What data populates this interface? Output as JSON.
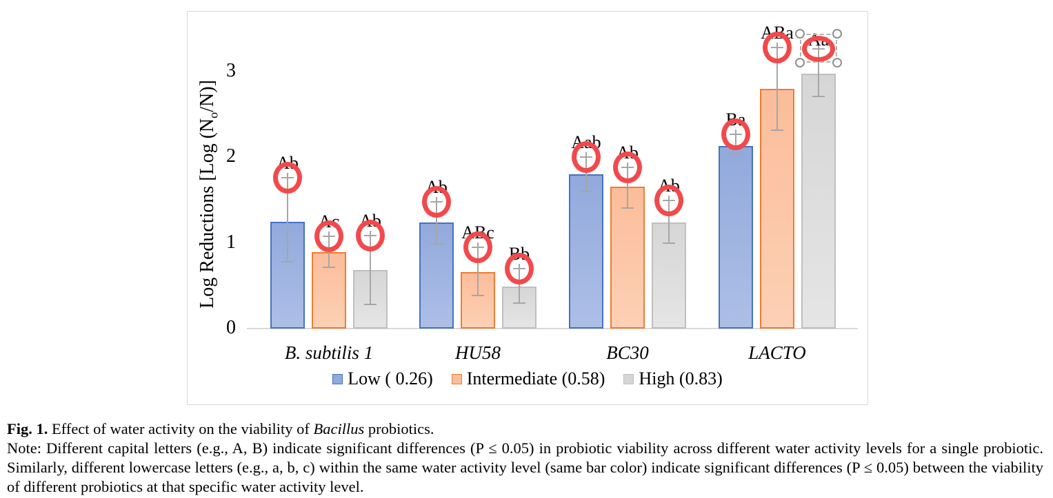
{
  "chart_data": {
    "type": "bar",
    "title": "",
    "ylabel_plain": "Log Reductions [Log (No/N)]",
    "ylabel": {
      "pre": "Log Reductions [Log (N",
      "sub": "o",
      "post": "/N)]"
    },
    "categories": [
      "B. subtilis 1",
      "HU58",
      "BC30",
      "LACTO"
    ],
    "yticks": [
      0,
      1,
      2,
      3
    ],
    "ylim": [
      0,
      3.45
    ],
    "grid": false,
    "legend_position": "bottom-center",
    "error_bars": true,
    "series": [
      {
        "name": "Low ( 0.26)",
        "fill": "#92a9dc",
        "fill_light": "#adbfe6",
        "border": "#4472c4",
        "values": [
          1.25,
          1.24,
          1.8,
          2.13
        ],
        "error_up": [
          0.51,
          0.24,
          0.2,
          0.14
        ],
        "error_down": [
          0.47,
          0.25,
          0.2,
          0.09
        ],
        "sig_labels": [
          "Ab",
          "Ab",
          "Aab",
          "Ba"
        ]
      },
      {
        "name": "Intermediate (0.58)",
        "fill": "#fbbd9a",
        "fill_light": "#fdd0b5",
        "border": "#ed7d31",
        "values": [
          0.89,
          0.66,
          1.66,
          2.8
        ],
        "error_up": [
          0.19,
          0.29,
          0.22,
          0.48
        ],
        "error_down": [
          0.17,
          0.27,
          0.25,
          0.48
        ],
        "sig_labels": [
          "Ac",
          "ABc",
          "Ab",
          "ABa"
        ]
      },
      {
        "name": "High (0.83)",
        "fill": "#d6d6d6",
        "fill_light": "#e5e5e5",
        "border": "#bfbfbf",
        "values": [
          0.68,
          0.49,
          1.24,
          2.98
        ],
        "error_up": [
          0.41,
          0.21,
          0.26,
          0.29
        ],
        "error_down": [
          0.4,
          0.19,
          0.24,
          0.27
        ],
        "sig_labels": [
          "Ab",
          "Bb",
          "Ab",
          "Aa"
        ]
      }
    ],
    "circle_annotations": {
      "description": "red ellipse circling the top error-bar cap of every bar",
      "color": "#f2494c",
      "selected_series": 2,
      "selected_category": 3
    }
  },
  "colors": {
    "axis_line": "#d9d9d9",
    "error_bar": "#a6a6a6",
    "panel_border": "#d8d8d8",
    "annotation_red": "#f2494c",
    "text": "#000000"
  },
  "caption": {
    "fig_label": "Fig. 1.",
    "before_italic": " Effect of water activity on the viability of ",
    "italic_word": "Bacillus",
    "after_italic": " probiotics.",
    "note": "Note: Different capital letters (e.g., A, B) indicate significant differences (P ≤ 0.05) in probiotic viability across different water activity levels for a single probiotic. Similarly, different lowercase letters (e.g., a, b, c) within the same water activity level (same bar color) indicate significant differences (P ≤ 0.05) between the viability of different probiotics at that specific water activity level."
  }
}
